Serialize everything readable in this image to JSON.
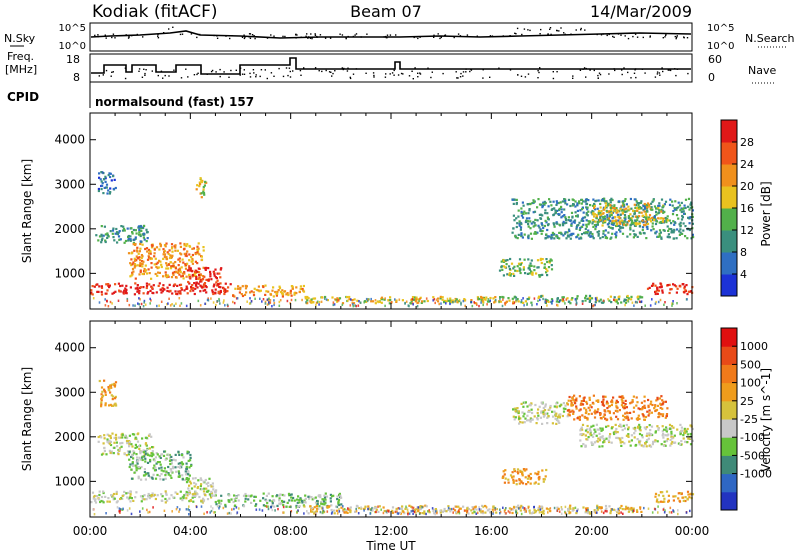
{
  "header": {
    "station": "Kodiak (fitACF)",
    "beam": "Beam 07",
    "date": "14/Mar/2009"
  },
  "noise_panel": {
    "left_label": "N.Sky",
    "right_label": "N.Search",
    "left_ticks": [
      "10^5",
      "10^0"
    ],
    "right_ticks": [
      "10^5",
      "10^0"
    ]
  },
  "freq_panel": {
    "left_label_1": "Freq.",
    "left_label_2": "[MHz]",
    "right_label": "Nave",
    "left_ticks": [
      "18",
      "8"
    ],
    "right_ticks": [
      "60",
      "0"
    ]
  },
  "cpid": {
    "label": "CPID",
    "value": "normalsound (fast) 157"
  },
  "x_axis": {
    "label": "Time UT",
    "ticks": [
      "00:00",
      "04:00",
      "08:00",
      "12:00",
      "16:00",
      "20:00",
      "00:00"
    ]
  },
  "colors": {
    "power_scale": [
      "#1c32d6",
      "#2f6fc2",
      "#3a8f7e",
      "#52b04a",
      "#e9c21f",
      "#f0901c",
      "#f0551a",
      "#e01818"
    ],
    "velocity_scale": [
      "#2233c0",
      "#2f67c4",
      "#3f8a78",
      "#66c33a",
      "#c8c8c8",
      "#d6c23c",
      "#ef9c1c",
      "#f07a1a",
      "#e84a18",
      "#e01010"
    ]
  },
  "chart_data": [
    {
      "type": "heatmap",
      "name": "power",
      "ylabel": "Slant Range [km]",
      "xlabel": "Time UT",
      "xlim": [
        0,
        24
      ],
      "ylim": [
        200,
        4600
      ],
      "yticks": [
        1000,
        2000,
        3000,
        4000
      ],
      "colorbar": {
        "label": "Power [dB]",
        "range": [
          0,
          32
        ],
        "ticks": [
          "4",
          "8",
          "12",
          "16",
          "20",
          "24",
          "28"
        ]
      },
      "regions": [
        {
          "t0": 0.0,
          "t1": 5.6,
          "r0": 550,
          "r1": 800,
          "level": 7
        },
        {
          "t0": 5.6,
          "t1": 8.5,
          "r0": 500,
          "r1": 750,
          "level": 5
        },
        {
          "t0": 8.5,
          "t1": 16.8,
          "r0": 350,
          "r1": 500,
          "level": 4
        },
        {
          "t0": 16.8,
          "t1": 22.0,
          "r0": 350,
          "r1": 520,
          "level": 3
        },
        {
          "t0": 22.2,
          "t1": 24.0,
          "r0": 550,
          "r1": 800,
          "level": 7
        },
        {
          "t0": 0.2,
          "t1": 2.3,
          "r0": 1700,
          "r1": 2100,
          "level": 2
        },
        {
          "t0": 1.5,
          "t1": 4.5,
          "r0": 900,
          "r1": 1700,
          "level": 5
        },
        {
          "t0": 3.8,
          "t1": 5.2,
          "r0": 700,
          "r1": 1150,
          "level": 7
        },
        {
          "t0": 0.3,
          "t1": 1.0,
          "r0": 2800,
          "r1": 3300,
          "level": 1
        },
        {
          "t0": 4.2,
          "t1": 4.6,
          "r0": 2700,
          "r1": 3200,
          "level": 4
        },
        {
          "t0": 16.3,
          "t1": 18.4,
          "r0": 950,
          "r1": 1350,
          "level": 3
        },
        {
          "t0": 16.8,
          "t1": 24.0,
          "r0": 1800,
          "r1": 2700,
          "level": 2
        },
        {
          "t0": 20.0,
          "t1": 23.0,
          "r0": 2100,
          "r1": 2600,
          "level": 4
        }
      ]
    },
    {
      "type": "heatmap",
      "name": "velocity",
      "ylabel": "Slant Range [km]",
      "xlabel": "Time UT",
      "xlim": [
        0,
        24
      ],
      "ylim": [
        200,
        4600
      ],
      "yticks": [
        1000,
        2000,
        3000,
        4000
      ],
      "colorbar": {
        "label": "Velocity [m s^-1]",
        "ticks": [
          "1000",
          "500",
          "100",
          "25",
          "-25",
          "-100",
          "-500",
          "-1000"
        ]
      },
      "regions": [
        {
          "t0": 0.0,
          "t1": 5.0,
          "r0": 550,
          "r1": 800,
          "level": 4
        },
        {
          "t0": 5.0,
          "t1": 10.0,
          "r0": 450,
          "r1": 750,
          "level": 3
        },
        {
          "t0": 8.5,
          "t1": 16.8,
          "r0": 300,
          "r1": 480,
          "level": 5
        },
        {
          "t0": 16.8,
          "t1": 22.0,
          "r0": 300,
          "r1": 480,
          "level": 5
        },
        {
          "t0": 22.5,
          "t1": 24.0,
          "r0": 550,
          "r1": 800,
          "level": 6
        },
        {
          "t0": 0.3,
          "t1": 2.5,
          "r0": 1600,
          "r1": 2100,
          "level": 4
        },
        {
          "t0": 1.5,
          "t1": 4.0,
          "r0": 1050,
          "r1": 1700,
          "level": 3
        },
        {
          "t0": 3.8,
          "t1": 5.0,
          "r0": 700,
          "r1": 1100,
          "level": 4
        },
        {
          "t0": 0.3,
          "t1": 1.0,
          "r0": 2700,
          "r1": 3300,
          "level": 6
        },
        {
          "t0": 16.4,
          "t1": 18.2,
          "r0": 950,
          "r1": 1300,
          "level": 6
        },
        {
          "t0": 16.8,
          "t1": 19.0,
          "r0": 2300,
          "r1": 2800,
          "level": 4
        },
        {
          "t0": 19.0,
          "t1": 23.0,
          "r0": 2400,
          "r1": 2950,
          "level": 7
        },
        {
          "t0": 19.5,
          "t1": 24.0,
          "r0": 1800,
          "r1": 2300,
          "level": 4
        }
      ]
    }
  ]
}
